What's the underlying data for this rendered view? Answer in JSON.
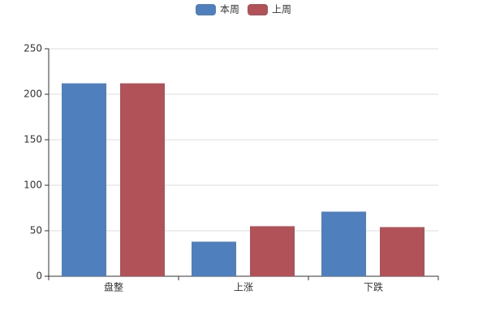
{
  "chart_data": {
    "type": "bar",
    "categories": [
      "盘整",
      "上涨",
      "下跌"
    ],
    "series": [
      {
        "name": "本周",
        "color": "#4f7fbd",
        "values": [
          212,
          38,
          71
        ]
      },
      {
        "name": "上周",
        "color": "#b05257",
        "values": [
          212,
          55,
          54
        ]
      }
    ],
    "ylim": [
      0,
      250
    ],
    "yticks": [
      0,
      50,
      100,
      150,
      200,
      250
    ],
    "grid": true,
    "legend": "top"
  }
}
